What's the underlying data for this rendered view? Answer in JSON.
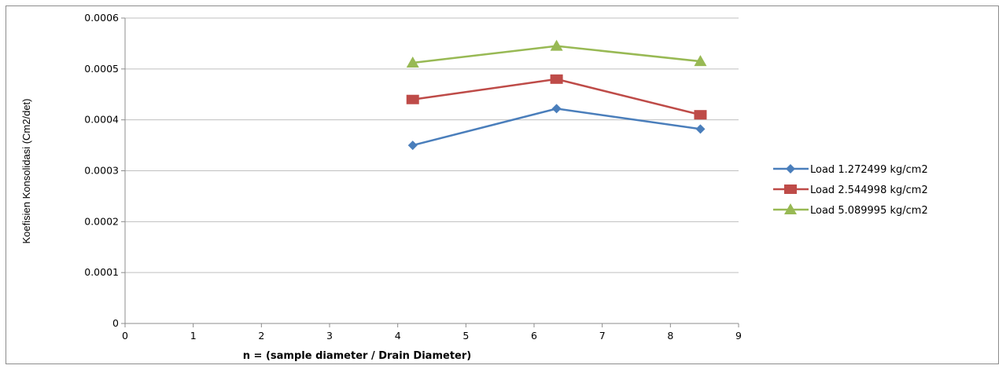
{
  "chart_data": {
    "type": "line",
    "title": "",
    "xlabel": "n = (sample diameter / Drain Diameter)",
    "ylabel": "Koefisien Konsolidasi (Cm2/det)",
    "xlim": [
      0,
      9
    ],
    "ylim": [
      0,
      0.0006
    ],
    "x_ticks": [
      "0",
      "1",
      "2",
      "3",
      "4",
      "5",
      "6",
      "7",
      "8",
      "9"
    ],
    "y_ticks": [
      "0",
      "0.0001",
      "0.0002",
      "0.0003",
      "0.0004",
      "0.0005",
      "0.0006"
    ],
    "grid": "horizontal",
    "legend_position": "right",
    "x": [
      4.22,
      6.33,
      8.44
    ],
    "series": [
      {
        "name": "Load 1.272499 kg/cm2",
        "values": [
          0.00035,
          0.000422,
          0.000382
        ],
        "color": "#4a7ebb",
        "marker": "diamond"
      },
      {
        "name": "Load 2.544998 kg/cm2",
        "values": [
          0.00044,
          0.00048,
          0.00041
        ],
        "color": "#be4b48",
        "marker": "square"
      },
      {
        "name": "Load 5.089995 kg/cm2",
        "values": [
          0.000512,
          0.000545,
          0.000515
        ],
        "color": "#98b954",
        "marker": "triangle"
      }
    ]
  }
}
